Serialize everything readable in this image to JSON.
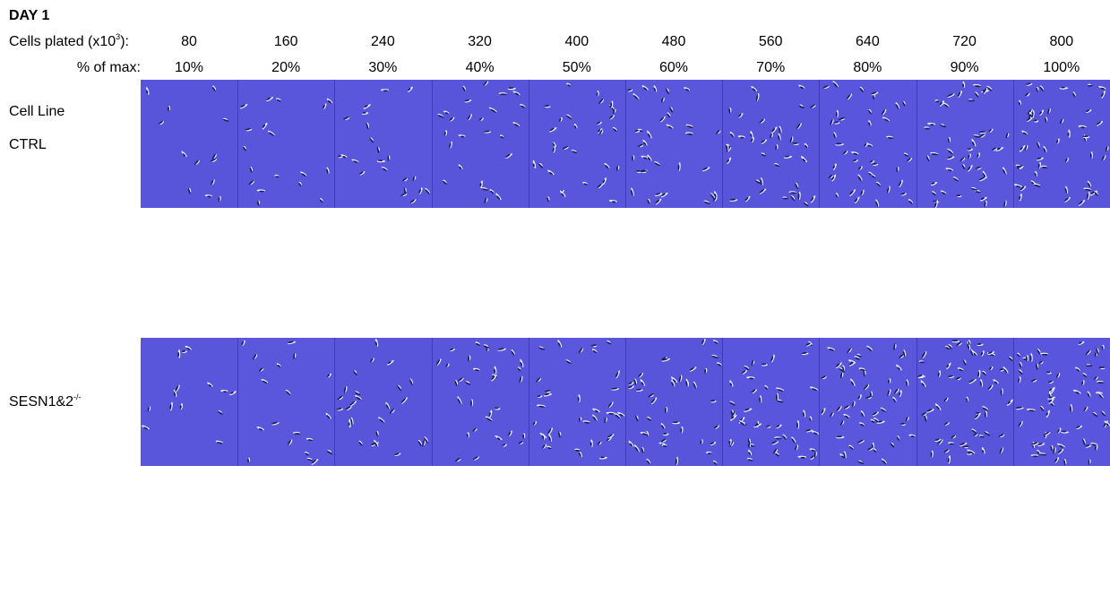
{
  "title": "DAY 1",
  "cells_plated": {
    "label_prefix": "Cells plated (x10",
    "label_exp": "3",
    "label_suffix": "):",
    "values": [
      "80",
      "160",
      "240",
      "320",
      "400",
      "480",
      "560",
      "640",
      "720",
      "800"
    ]
  },
  "percent_of_max": {
    "label": "% of max:",
    "values": [
      "10%",
      "20%",
      "30%",
      "40%",
      "50%",
      "60%",
      "70%",
      "80%",
      "90%",
      "100%"
    ]
  },
  "rows": [
    {
      "header": "Cell Line",
      "name": "CTRL",
      "sup": ""
    },
    {
      "name": "SESN1&2",
      "sup": "-/-"
    }
  ],
  "image_color": "#5d5ae0",
  "relative_cell_density": [
    0.1,
    0.2,
    0.3,
    0.4,
    0.5,
    0.6,
    0.7,
    0.8,
    0.9,
    1.0
  ]
}
